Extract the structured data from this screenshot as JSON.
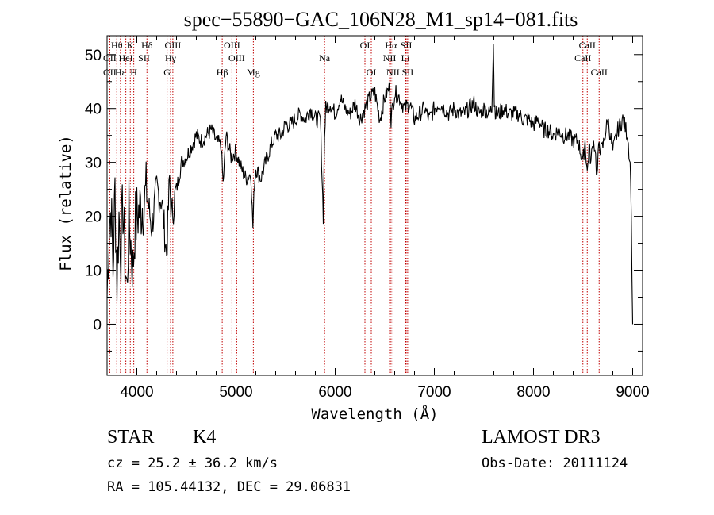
{
  "chart_data": {
    "type": "line",
    "title": "spec−55890−GAC_106N28_M1_sp14−081.fits",
    "xlabel": "Wavelength (Å)",
    "ylabel": "Flux (relative)",
    "xlim": [
      3700,
      9100
    ],
    "ylim": [
      -9.5,
      53.5
    ],
    "x_ticks": [
      4000,
      5000,
      6000,
      7000,
      8000,
      9000
    ],
    "y_ticks": [
      0,
      10,
      20,
      30,
      40,
      50
    ],
    "series": [
      {
        "name": "spectrum",
        "x": [
          3700,
          3720,
          3740,
          3760,
          3780,
          3800,
          3820,
          3840,
          3860,
          3880,
          3900,
          3920,
          3940,
          3960,
          3980,
          4000,
          4050,
          4100,
          4150,
          4200,
          4250,
          4300,
          4330,
          4350,
          4400,
          4450,
          4500,
          4550,
          4600,
          4650,
          4700,
          4750,
          4800,
          4850,
          4870,
          4900,
          4950,
          5000,
          5050,
          5100,
          5150,
          5170,
          5185,
          5200,
          5250,
          5300,
          5350,
          5400,
          5450,
          5500,
          5550,
          5600,
          5650,
          5700,
          5750,
          5800,
          5850,
          5880,
          5893,
          5905,
          5950,
          6000,
          6050,
          6100,
          6150,
          6200,
          6250,
          6300,
          6350,
          6400,
          6450,
          6500,
          6550,
          6563,
          6600,
          6650,
          6700,
          6750,
          6800,
          6850,
          6900,
          6950,
          7000,
          7050,
          7100,
          7150,
          7200,
          7250,
          7300,
          7350,
          7400,
          7450,
          7500,
          7550,
          7580,
          7595,
          7605,
          7620,
          7650,
          7700,
          7750,
          7800,
          7850,
          7900,
          7950,
          8000,
          8050,
          8100,
          8150,
          8200,
          8250,
          8300,
          8350,
          8400,
          8450,
          8498,
          8520,
          8542,
          8560,
          8580,
          8600,
          8620,
          8640,
          8662,
          8680,
          8700,
          8750,
          8800,
          8850,
          8900,
          8950,
          8980,
          9000
        ],
        "y": [
          5,
          18,
          22,
          10,
          25,
          8,
          20,
          14,
          22,
          12,
          6,
          20,
          15,
          10,
          18,
          20,
          22,
          24,
          18,
          25,
          23,
          13,
          27,
          20,
          25,
          30,
          31,
          33,
          35,
          34,
          35,
          36,
          34,
          33,
          26,
          35,
          31,
          32,
          29,
          27,
          28,
          18,
          26,
          29,
          27,
          30,
          33,
          35,
          35,
          37,
          37,
          38,
          39,
          38,
          40,
          38,
          38,
          20,
          35,
          40,
          41,
          39,
          42,
          40,
          39,
          41,
          38,
          40,
          42,
          43,
          38,
          42,
          44,
          38,
          43,
          42,
          40,
          41,
          38,
          39,
          40,
          38,
          40,
          41,
          40,
          39,
          40,
          39,
          39,
          40,
          41,
          39,
          40,
          39,
          40,
          53,
          41,
          39,
          39,
          40,
          39,
          39,
          39,
          38,
          38,
          37,
          38,
          36,
          36,
          35,
          36,
          35,
          35,
          34,
          34,
          30,
          34,
          28,
          33,
          30,
          34,
          33,
          27,
          34,
          32,
          33,
          38,
          32,
          36,
          38,
          35,
          28,
          0
        ]
      }
    ],
    "lines": [
      {
        "name": "Hθ",
        "wave": 3798,
        "label_row": 1
      },
      {
        "name": "OII",
        "wave": 3727,
        "label_row": 2
      },
      {
        "name": "OII",
        "wave": 3727,
        "label_row": 3
      },
      {
        "name": "Hε",
        "wave": 3835,
        "label_row": 3
      },
      {
        "name": "HeI",
        "wave": 3889,
        "label_row": 2
      },
      {
        "name": "K",
        "wave": 3934,
        "label_row": 1
      },
      {
        "name": "H",
        "wave": 3969,
        "label_row": 3
      },
      {
        "name": "SII",
        "wave": 4072,
        "label_row": 2
      },
      {
        "name": "Hδ",
        "wave": 4102,
        "label_row": 1
      },
      {
        "name": "OIII",
        "wave": 4363,
        "label_row": 1
      },
      {
        "name": "Hγ",
        "wave": 4340,
        "label_row": 2
      },
      {
        "name": "G",
        "wave": 4305,
        "label_row": 3
      },
      {
        "name": "Hβ",
        "wave": 4861,
        "label_row": 3
      },
      {
        "name": "OIII",
        "wave": 4959,
        "label_row": 1
      },
      {
        "name": "OIII",
        "wave": 5007,
        "label_row": 2
      },
      {
        "name": "Mg",
        "wave": 5175,
        "label_row": 3
      },
      {
        "name": "Na",
        "wave": 5893,
        "label_row": 2
      },
      {
        "name": "OI",
        "wave": 6300,
        "label_row": 1
      },
      {
        "name": "OI",
        "wave": 6364,
        "label_row": 3
      },
      {
        "name": "Hα",
        "wave": 6563,
        "label_row": 1
      },
      {
        "name": "NII",
        "wave": 6548,
        "label_row": 2
      },
      {
        "name": "NII",
        "wave": 6583,
        "label_row": 3
      },
      {
        "name": "SII",
        "wave": 6716,
        "label_row": 1
      },
      {
        "name": "Li",
        "wave": 6708,
        "label_row": 2
      },
      {
        "name": "SII",
        "wave": 6731,
        "label_row": 3
      },
      {
        "name": "CaII",
        "wave": 8542,
        "label_row": 1
      },
      {
        "name": "CaII",
        "wave": 8498,
        "label_row": 2
      },
      {
        "name": "CaII",
        "wave": 8662,
        "label_row": 3
      }
    ]
  },
  "info": {
    "class": "STAR",
    "subclass": "K4",
    "survey": "LAMOST DR3",
    "cz": "cz = 25.2 ± 36.2 km/s",
    "obs_date": "Obs-Date: 20111124",
    "coords": "RA = 105.44132, DEC =  29.06831"
  }
}
